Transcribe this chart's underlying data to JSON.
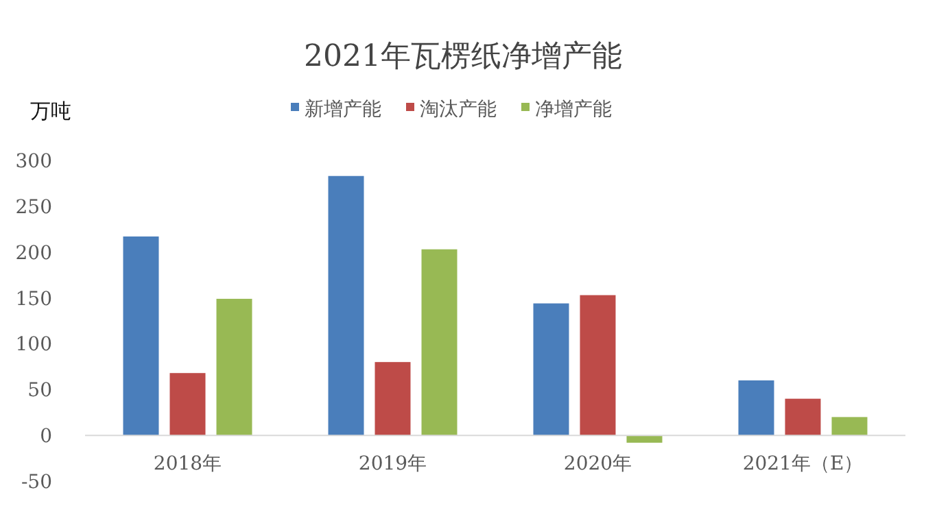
{
  "chart_data": {
    "type": "bar",
    "title": "2021年瓦楞纸净增产能",
    "ylabel": "万吨",
    "categories": [
      "2018年",
      "2019年",
      "2020年",
      "2021年（E）"
    ],
    "series": [
      {
        "name": "新增产能",
        "color": "#4a7ebb",
        "values": [
          217,
          283,
          144,
          60
        ]
      },
      {
        "name": "淘汰产能",
        "color": "#be4b48",
        "values": [
          68,
          80,
          153,
          40
        ]
      },
      {
        "name": "净增产能",
        "color": "#98b954",
        "values": [
          149,
          203,
          -8,
          20
        ]
      }
    ],
    "ylim": [
      -50,
      300
    ],
    "yticks": [
      -50,
      0,
      50,
      100,
      150,
      200,
      250,
      300
    ],
    "legend": "top",
    "grid": false
  }
}
